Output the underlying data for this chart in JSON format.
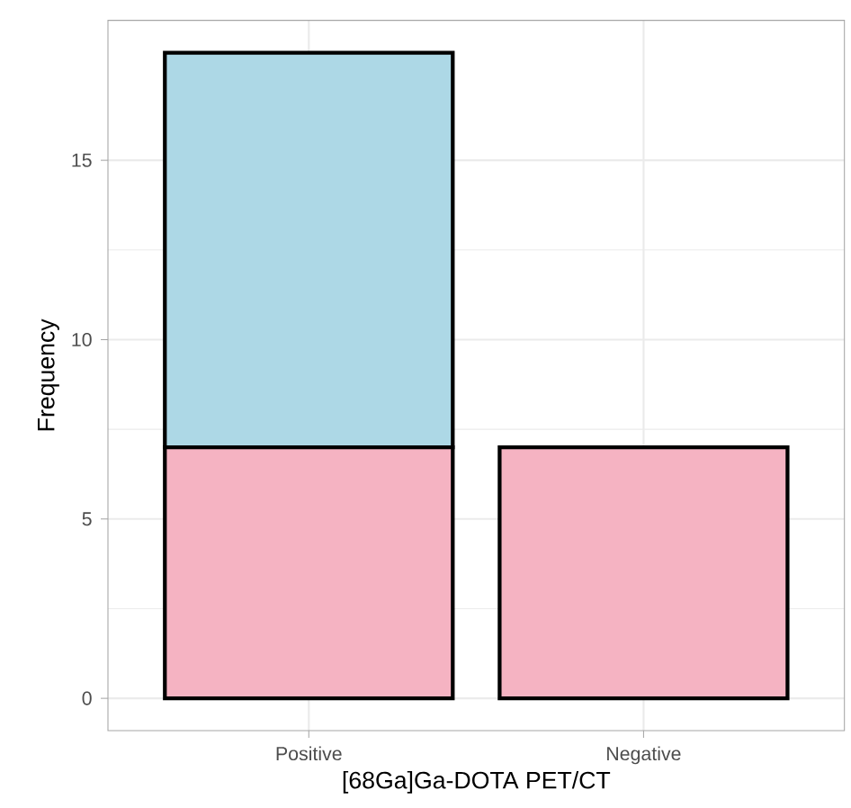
{
  "chart_data": {
    "type": "bar",
    "xlabel": "[68Ga]Ga-DOTA PET/CT",
    "ylabel": "Frequency",
    "categories": [
      "Positive",
      "Negative"
    ],
    "stacked": true,
    "series": [
      {
        "color": "#f5b3c2",
        "values": [
          7,
          7
        ]
      },
      {
        "color": "#add8e6",
        "values": [
          11,
          0
        ]
      }
    ],
    "ylim": [
      -0.9,
      18.9
    ],
    "yticks": [
      0,
      5,
      10,
      15
    ],
    "grid": true
  }
}
